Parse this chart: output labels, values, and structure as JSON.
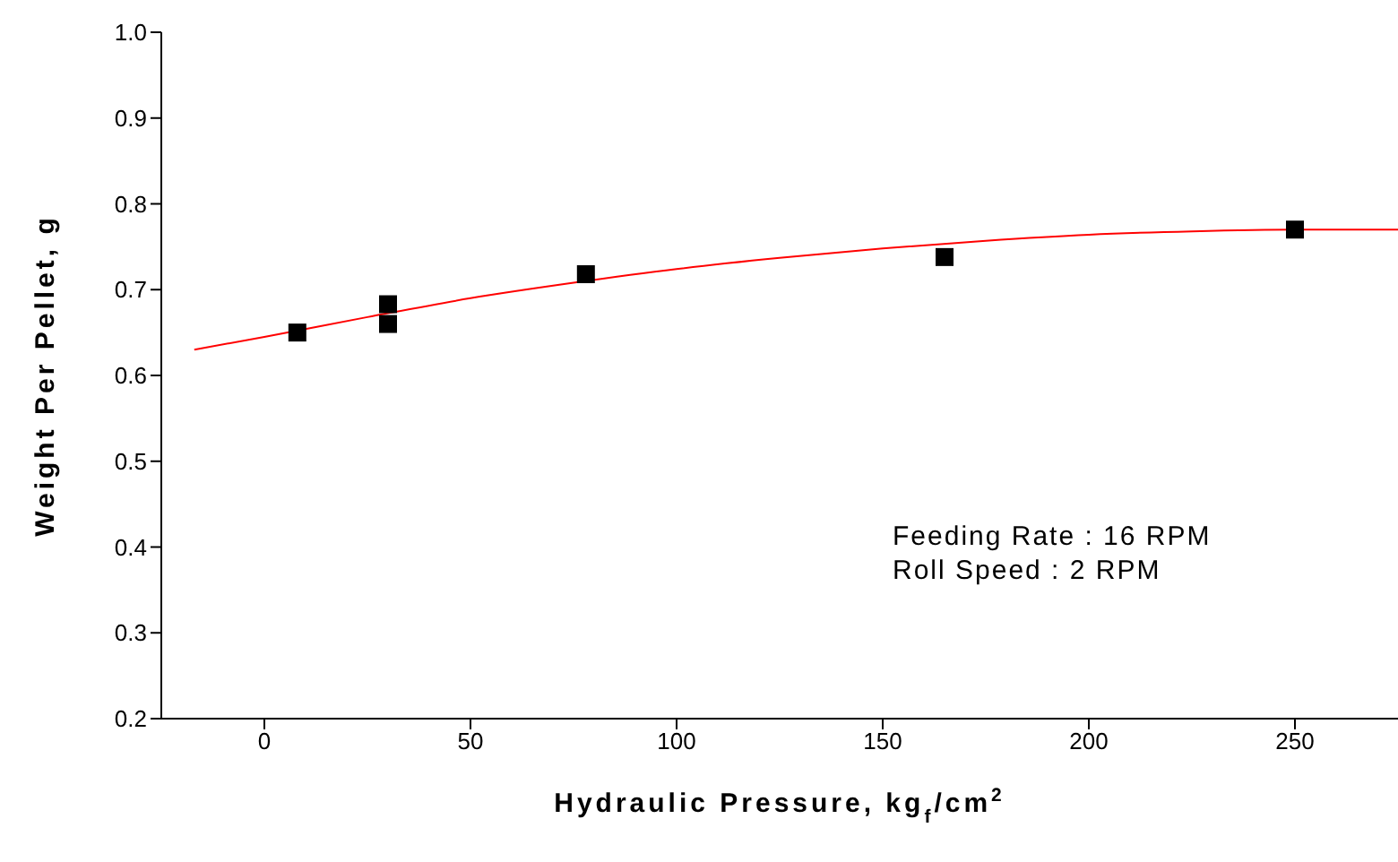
{
  "chart_data": {
    "type": "scatter",
    "xlabel": "Hydraulic Pressure, kg$_{f}$/cm$^{2}$",
    "ylabel": "Weight Per Pellet, g",
    "xlim": [
      -25,
      275
    ],
    "xticks": [
      0,
      50,
      100,
      150,
      200,
      250
    ],
    "ylim": [
      0.2,
      1.0
    ],
    "yticks": [
      0.2,
      0.3,
      0.4,
      0.5,
      0.6,
      0.7,
      0.8,
      0.9,
      {
        "value": 1.0,
        "label": "1.0"
      }
    ],
    "grid": false,
    "marker": "square",
    "series": [
      {
        "color": "#000000",
        "x": [
          8,
          30,
          30,
          78,
          165,
          250
        ],
        "values": [
          0.65,
          0.683,
          0.66,
          0.718,
          0.738,
          0.77
        ]
      },
      {
        "type": "line",
        "color": "#ff0000",
        "marker": "none",
        "line_style": "solid",
        "x": [
          -17,
          0,
          25,
          50,
          75,
          100,
          125,
          150,
          175,
          200,
          225,
          250,
          275
        ],
        "values": [
          0.63,
          0.645,
          0.668,
          0.69,
          0.708,
          0.724,
          0.737,
          0.748,
          0.757,
          0.764,
          0.768,
          0.77,
          0.77
        ]
      }
    ],
    "annotations": [
      "Feeding Rate : 16 RPM",
      "Roll Speed : 2 RPM"
    ]
  }
}
